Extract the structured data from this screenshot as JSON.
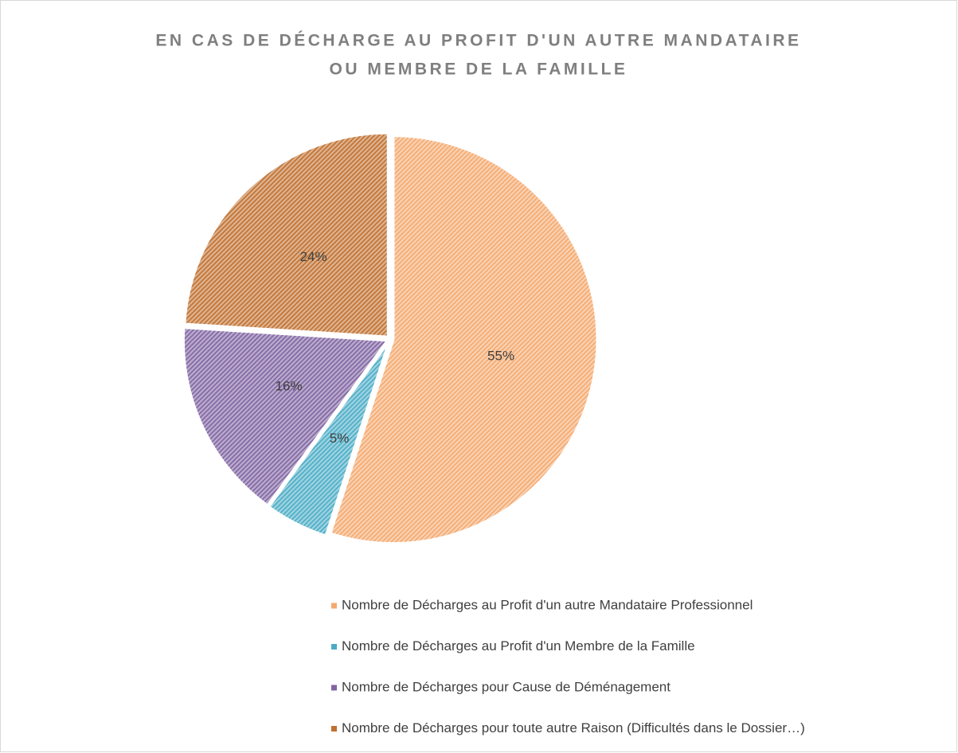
{
  "chart_data": {
    "type": "pie",
    "title": [
      "EN CAS DE DÉCHARGE AU PROFIT D'UN AUTRE MANDATAIRE",
      "OU MEMBRE DE LA FAMILLE"
    ],
    "categories": [
      "Nombre de Décharges au Profit d'un autre Mandataire Professionnel",
      "Nombre de Décharges au Profit d'un Membre de la Famille",
      "Nombre de Décharges pour Cause de Déménagement",
      "Nombre de Décharges pour toute autre Raison (Difficultés dans le Dossier…)"
    ],
    "values": [
      55,
      5,
      16,
      24
    ],
    "value_labels": [
      "55%",
      "5%",
      "16%",
      "24%"
    ],
    "colors": [
      "#f4a96e",
      "#4bacc6",
      "#8064a2",
      "#c07030"
    ],
    "legend": "bottom"
  }
}
